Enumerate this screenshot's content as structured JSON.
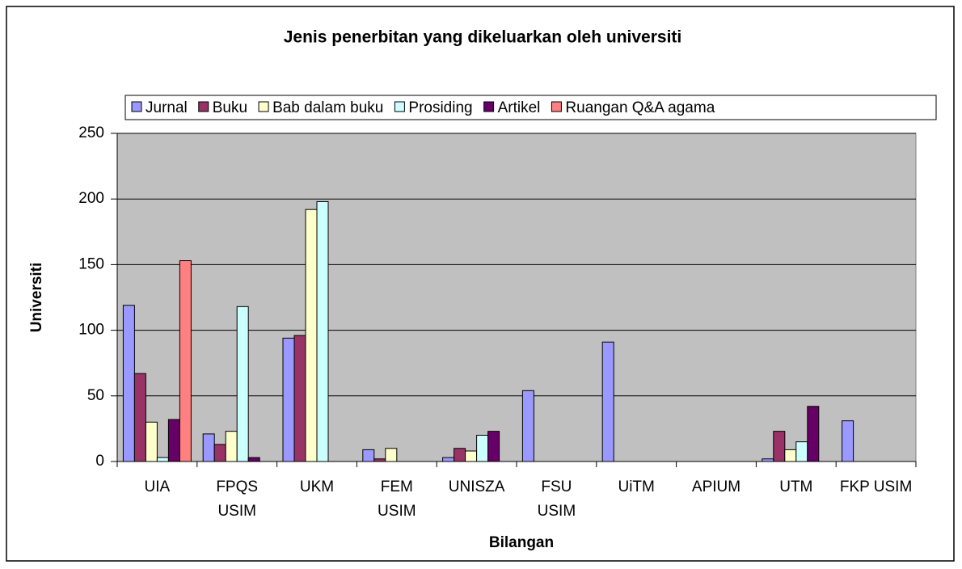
{
  "chart_data": {
    "type": "bar",
    "title": "Jenis penerbitan yang dikeluarkan oleh universiti",
    "x_label": "Bilangan",
    "y_label": "Universiti",
    "categories": [
      "UIA",
      "FPQS USIM",
      "UKM",
      "FEM USIM",
      "UNISZA",
      "FSU USIM",
      "UiTM",
      "APIUM",
      "UTM",
      "FKP USIM"
    ],
    "series": [
      {
        "name": "Jurnal",
        "color": "#9999ff",
        "values": [
          119,
          21,
          94,
          9,
          3,
          54,
          91,
          0,
          2,
          31
        ]
      },
      {
        "name": "Buku",
        "color": "#993366",
        "values": [
          67,
          13,
          96,
          2,
          10,
          0,
          0,
          0,
          23,
          0
        ]
      },
      {
        "name": "Bab dalam buku",
        "color": "#ffffcc",
        "values": [
          30,
          23,
          192,
          10,
          8,
          0,
          0,
          0,
          9,
          0
        ]
      },
      {
        "name": "Prosiding",
        "color": "#ccffff",
        "values": [
          3,
          118,
          198,
          0,
          20,
          0,
          0,
          0,
          15,
          0
        ]
      },
      {
        "name": "Artikel",
        "color": "#660066",
        "values": [
          32,
          3,
          0,
          0,
          23,
          0,
          0,
          0,
          42,
          0
        ]
      },
      {
        "name": "Ruangan Q&A agama",
        "color": "#ff8080",
        "values": [
          153,
          0,
          0,
          0,
          0,
          0,
          0,
          0,
          0,
          0
        ]
      }
    ],
    "ylim": [
      0,
      250
    ],
    "yticks": [
      0,
      50,
      100,
      150,
      200,
      250
    ],
    "grid": true,
    "legend": "top"
  }
}
